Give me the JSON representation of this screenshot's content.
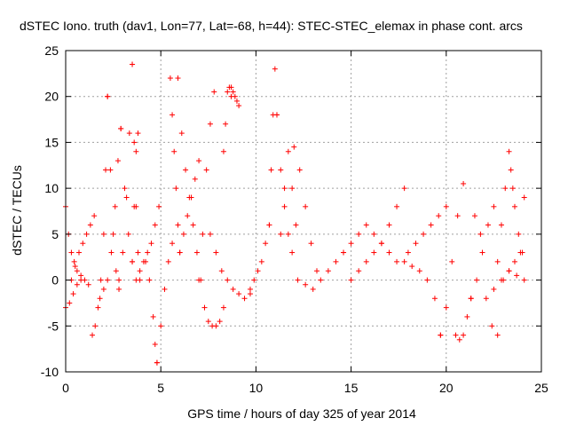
{
  "chart_data": {
    "type": "scatter",
    "title": "dSTEC Iono. truth (dav1, Lon=77, Lat=-68, h=44): STEC-STEC_elemax in phase cont. arcs",
    "xlabel": "GPS time / hours of day 325 of year 2014",
    "ylabel": "dSTEC  / TECUs",
    "xlim": [
      0,
      25
    ],
    "ylim": [
      -10,
      25
    ],
    "xticks": [
      0,
      5,
      10,
      15,
      20,
      25
    ],
    "yticks": [
      -10,
      -5,
      0,
      5,
      10,
      15,
      20,
      25
    ],
    "xtick_labels": [
      "0",
      "5",
      "10",
      "15",
      "20",
      "25"
    ],
    "ytick_labels": [
      "-10",
      "-5",
      "0",
      "5",
      "10",
      "15",
      "20",
      "25"
    ],
    "grid": true,
    "marker": "+",
    "color": "#ff0000",
    "series": [
      {
        "name": "dSTEC",
        "arcs": [
          {
            "x": [
              0.0,
              0.15,
              0.3,
              0.45,
              0.6,
              0.8,
              1.0,
              1.2
            ],
            "y": [
              8.0,
              5.0,
              3.0,
              2.0,
              1.0,
              0.5,
              0.0,
              -0.5
            ]
          },
          {
            "x": [
              0.0,
              0.2,
              0.4,
              0.6,
              0.8
            ],
            "y": [
              -3.0,
              -2.5,
              -1.5,
              -0.5,
              0.0
            ]
          },
          {
            "x": [
              0.3,
              0.5,
              0.7,
              0.9,
              1.1,
              1.3,
              1.5
            ],
            "y": [
              0.0,
              1.5,
              3.0,
              4.0,
              5.0,
              6.0,
              7.0
            ]
          },
          {
            "x": [
              1.4,
              1.55,
              1.7,
              1.85,
              2.0,
              2.1,
              2.2
            ],
            "y": [
              -6.0,
              -5.0,
              -3.0,
              0.0,
              5.0,
              12.0,
              20.0
            ]
          },
          {
            "x": [
              2.2,
              2.35,
              2.5,
              2.65,
              2.8
            ],
            "y": [
              20.0,
              12.0,
              5.0,
              1.0,
              -1.0
            ]
          },
          {
            "x": [
              1.8,
              2.0,
              2.2,
              2.4,
              2.6,
              2.75,
              2.9
            ],
            "y": [
              -2.0,
              -1.0,
              0.0,
              3.0,
              8.0,
              13.0,
              16.5
            ]
          },
          {
            "x": [
              2.9,
              3.1,
              3.3,
              3.5,
              3.7
            ],
            "y": [
              16.5,
              10.0,
              5.0,
              2.0,
              0.0
            ]
          },
          {
            "x": [
              2.8,
              3.0,
              3.2,
              3.35,
              3.5
            ],
            "y": [
              0.0,
              3.0,
              9.0,
              16.0,
              23.5
            ]
          },
          {
            "x": [
              3.5,
              3.6,
              3.7,
              3.8,
              3.9
            ],
            "y": [
              23.5,
              15.0,
              8.0,
              3.0,
              0.0
            ]
          },
          {
            "x": [
              3.5,
              3.6,
              3.7,
              3.8
            ],
            "y": [
              2.0,
              8.0,
              14.0,
              16.0
            ]
          },
          {
            "x": [
              3.9,
              4.1,
              4.3,
              4.5,
              4.7,
              4.9
            ],
            "y": [
              1.0,
              2.0,
              3.0,
              4.0,
              6.0,
              8.0
            ]
          },
          {
            "x": [
              4.2,
              4.4,
              4.6,
              4.7,
              4.8
            ],
            "y": [
              2.0,
              0.0,
              -4.0,
              -7.0,
              -9.0
            ]
          },
          {
            "x": [
              4.8,
              5.0,
              5.2,
              5.4,
              5.6
            ],
            "y": [
              -9.0,
              -5.0,
              -1.0,
              2.0,
              4.0
            ]
          },
          {
            "x": [
              5.5,
              5.6,
              5.7,
              5.8,
              5.9,
              6.0
            ],
            "y": [
              22.0,
              18.0,
              14.0,
              10.0,
              6.0,
              3.0
            ]
          },
          {
            "x": [
              5.9,
              6.1,
              6.3,
              6.5,
              6.7,
              6.9,
              7.1
            ],
            "y": [
              22.0,
              16.0,
              12.0,
              9.0,
              6.0,
              3.0,
              0.0
            ]
          },
          {
            "x": [
              6.0,
              6.2,
              6.4,
              6.6,
              6.8,
              7.0
            ],
            "y": [
              3.0,
              5.0,
              7.0,
              9.0,
              11.0,
              13.0
            ]
          },
          {
            "x": [
              7.0,
              7.2,
              7.4,
              7.6,
              7.8
            ],
            "y": [
              0.0,
              5.0,
              12.0,
              17.0,
              20.5
            ]
          },
          {
            "x": [
              7.3,
              7.5,
              7.7,
              7.9,
              8.1,
              8.3
            ],
            "y": [
              -3.0,
              -4.5,
              -5.0,
              -5.0,
              -4.5,
              -3.0
            ]
          },
          {
            "x": [
              8.3,
              8.4,
              8.5,
              8.6,
              8.7
            ],
            "y": [
              14.0,
              17.0,
              20.5,
              21.0,
              20.0
            ]
          },
          {
            "x": [
              8.7,
              8.8,
              8.9,
              9.0,
              9.1
            ],
            "y": [
              21.0,
              20.5,
              20.0,
              19.5,
              19.0
            ]
          },
          {
            "x": [
              7.6,
              7.9,
              8.2,
              8.5,
              8.8,
              9.1,
              9.4,
              9.7
            ],
            "y": [
              5.0,
              3.0,
              1.0,
              0.0,
              -1.0,
              -1.5,
              -2.0,
              -1.5
            ]
          },
          {
            "x": [
              9.7,
              9.9,
              10.1,
              10.3,
              10.5,
              10.7
            ],
            "y": [
              -1.0,
              0.0,
              1.0,
              2.0,
              4.0,
              6.0
            ]
          },
          {
            "x": [
              10.7,
              10.8,
              10.9,
              11.0,
              11.1
            ],
            "y": [
              6.0,
              12.0,
              18.0,
              23.0,
              18.0
            ]
          },
          {
            "x": [
              11.1,
              11.3,
              11.5,
              11.7,
              11.9
            ],
            "y": [
              18.0,
              12.0,
              8.0,
              5.0,
              3.0
            ]
          },
          {
            "x": [
              11.3,
              11.5,
              11.7,
              11.9,
              12.1
            ],
            "y": [
              5.0,
              10.0,
              14.0,
              10.0,
              6.0
            ]
          },
          {
            "x": [
              12.0,
              12.3,
              12.6,
              12.9,
              13.2
            ],
            "y": [
              14.5,
              12.0,
              8.0,
              4.0,
              1.0
            ]
          },
          {
            "x": [
              12.2,
              12.6,
              13.0,
              13.4,
              13.8,
              14.2,
              14.6
            ],
            "y": [
              0.0,
              -0.5,
              -1.0,
              0.0,
              1.0,
              2.0,
              3.0
            ]
          },
          {
            "x": [
              14.6,
              15.0,
              15.4,
              15.8,
              16.2,
              16.6,
              17.0,
              17.4
            ],
            "y": [
              3.0,
              4.0,
              5.0,
              6.0,
              5.0,
              4.0,
              3.0,
              2.0
            ]
          },
          {
            "x": [
              15.0,
              15.4,
              15.8,
              16.2,
              16.6,
              17.0,
              17.4,
              17.8
            ],
            "y": [
              0.0,
              1.0,
              2.0,
              3.0,
              4.0,
              6.0,
              8.0,
              10.0
            ]
          },
          {
            "x": [
              17.8,
              18.2,
              18.6,
              19.0,
              19.4,
              19.7
            ],
            "y": [
              2.0,
              1.5,
              1.0,
              0.0,
              -2.0,
              -6.0
            ]
          },
          {
            "x": [
              18.0,
              18.4,
              18.8,
              19.2,
              19.6,
              20.0
            ],
            "y": [
              3.0,
              4.0,
              5.0,
              6.0,
              7.0,
              8.0
            ]
          },
          {
            "x": [
              19.7,
              20.0,
              20.3,
              20.6,
              20.9
            ],
            "y": [
              -6.0,
              -3.0,
              2.0,
              7.0,
              10.5
            ]
          },
          {
            "x": [
              20.5,
              20.7,
              20.9,
              21.1,
              21.3
            ],
            "y": [
              -6.0,
              -6.5,
              -6.0,
              -4.0,
              -2.0
            ]
          },
          {
            "x": [
              21.3,
              21.6,
              21.9,
              22.2,
              22.5
            ],
            "y": [
              -2.0,
              0.0,
              3.0,
              6.0,
              8.0
            ]
          },
          {
            "x": [
              21.5,
              21.8,
              22.1,
              22.4,
              22.7
            ],
            "y": [
              7.0,
              5.0,
              -2.0,
              -5.0,
              -6.0
            ]
          },
          {
            "x": [
              22.7,
              22.9,
              23.1,
              23.3,
              23.5
            ],
            "y": [
              2.0,
              6.0,
              10.0,
              14.0,
              10.0
            ]
          },
          {
            "x": [
              23.4,
              23.6,
              23.8,
              24.0
            ],
            "y": [
              12.0,
              8.0,
              5.0,
              3.0
            ]
          },
          {
            "x": [
              23.0,
              23.3,
              23.6,
              23.9,
              24.1
            ],
            "y": [
              0.0,
              1.0,
              2.0,
              3.0,
              9.0
            ]
          },
          {
            "x": [
              22.5,
              22.9,
              23.3,
              23.7,
              24.1
            ],
            "y": [
              -1.0,
              0.0,
              1.0,
              0.5,
              0.0
            ]
          }
        ]
      }
    ]
  }
}
